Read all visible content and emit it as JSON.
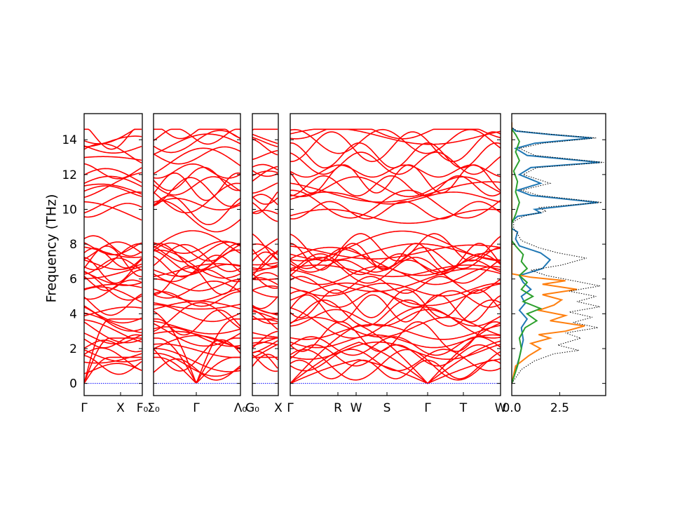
{
  "chart_data": {
    "type": "line",
    "ylabel": "Frequency (THz)",
    "ylim": [
      -0.7,
      15.5
    ],
    "yticks": [
      0,
      2,
      4,
      6,
      8,
      10,
      12,
      14
    ],
    "band_color": "#ff0000",
    "zero_line_color": "#0000ff",
    "panels": [
      {
        "segments": [
          {
            "from": "Γ",
            "to": "X"
          },
          {
            "from": "X",
            "to": "F₀"
          }
        ],
        "tick_labels": [
          "Γ",
          "X",
          "F₀"
        ]
      },
      {
        "segments": [
          {
            "from": "Σ₀",
            "to": "Γ"
          },
          {
            "from": "Γ",
            "to": "Λ₀"
          }
        ],
        "tick_labels": [
          "Σ₀",
          "Γ",
          "Λ₀"
        ]
      },
      {
        "segments": [
          {
            "from": "G₀",
            "to": "X"
          }
        ],
        "tick_labels": [
          "G₀",
          "X"
        ]
      },
      {
        "segments": [
          {
            "from": "Γ",
            "to": "R"
          },
          {
            "from": "R",
            "to": "W"
          },
          {
            "from": "W",
            "to": "S"
          },
          {
            "from": "S",
            "to": "Γ"
          },
          {
            "from": "Γ",
            "to": "T"
          },
          {
            "from": "T",
            "to": "W"
          }
        ],
        "tick_labels": [
          "Γ",
          "R",
          "W",
          "S",
          "Γ",
          "T",
          "W"
        ]
      }
    ],
    "dos": {
      "xlim": [
        0,
        4.9
      ],
      "xticks": [
        "0.0",
        "2.5"
      ],
      "series": [
        {
          "color": "#1f77b4",
          "points": [
            [
              0.0,
              0
            ],
            [
              0.4,
              1.5
            ],
            [
              0.6,
              2.5
            ],
            [
              0.5,
              3.2
            ],
            [
              0.8,
              3.7
            ],
            [
              0.4,
              4.2
            ],
            [
              0.7,
              4.6
            ],
            [
              0.5,
              5.0
            ],
            [
              1.0,
              5.4
            ],
            [
              0.6,
              5.8
            ],
            [
              0.4,
              6.2
            ],
            [
              1.6,
              6.6
            ],
            [
              2.0,
              7.1
            ],
            [
              1.5,
              7.5
            ],
            [
              0.4,
              7.9
            ],
            [
              0.2,
              8.3
            ],
            [
              0.3,
              8.7
            ],
            [
              0.0,
              8.9
            ],
            [
              0.0,
              9.3
            ],
            [
              0.3,
              9.6
            ],
            [
              1.5,
              9.8
            ],
            [
              1.2,
              10.0
            ],
            [
              4.5,
              10.4
            ],
            [
              1.0,
              10.8
            ],
            [
              0.3,
              11.1
            ],
            [
              1.5,
              11.5
            ],
            [
              0.4,
              12.0
            ],
            [
              1.0,
              12.4
            ],
            [
              4.6,
              12.7
            ],
            [
              0.8,
              13.1
            ],
            [
              0.2,
              13.5
            ],
            [
              1.2,
              13.8
            ],
            [
              4.2,
              14.1
            ],
            [
              2.0,
              14.3
            ],
            [
              0.2,
              14.5
            ],
            [
              0.0,
              14.7
            ]
          ]
        },
        {
          "color": "#ff7f0e",
          "points": [
            [
              0.0,
              0
            ],
            [
              0.2,
              1.0
            ],
            [
              0.9,
              1.6
            ],
            [
              1.5,
              2.0
            ],
            [
              1.0,
              2.3
            ],
            [
              2.0,
              2.6
            ],
            [
              1.4,
              2.8
            ],
            [
              2.8,
              3.0
            ],
            [
              3.8,
              3.3
            ],
            [
              2.0,
              3.6
            ],
            [
              2.8,
              3.9
            ],
            [
              1.4,
              4.2
            ],
            [
              2.2,
              4.5
            ],
            [
              2.6,
              4.8
            ],
            [
              1.6,
              5.1
            ],
            [
              3.4,
              5.4
            ],
            [
              1.6,
              5.7
            ],
            [
              2.8,
              5.9
            ],
            [
              1.0,
              6.1
            ],
            [
              0.0,
              6.3
            ],
            [
              0.0,
              15.0
            ]
          ]
        },
        {
          "color": "#2ca02c",
          "points": [
            [
              0.0,
              0
            ],
            [
              0.3,
              1.0
            ],
            [
              0.5,
              2.0
            ],
            [
              0.4,
              2.6
            ],
            [
              0.7,
              3.2
            ],
            [
              1.3,
              3.6
            ],
            [
              0.8,
              4.0
            ],
            [
              1.5,
              4.3
            ],
            [
              0.6,
              4.7
            ],
            [
              1.1,
              5.0
            ],
            [
              0.5,
              5.4
            ],
            [
              0.8,
              5.8
            ],
            [
              0.4,
              6.2
            ],
            [
              0.8,
              6.6
            ],
            [
              0.5,
              7.0
            ],
            [
              0.6,
              7.4
            ],
            [
              0.2,
              7.9
            ],
            [
              0.0,
              8.2
            ],
            [
              0.0,
              9.2
            ],
            [
              0.2,
              9.7
            ],
            [
              0.4,
              10.4
            ],
            [
              0.2,
              11.0
            ],
            [
              0.3,
              11.6
            ],
            [
              0.1,
              12.2
            ],
            [
              0.4,
              12.8
            ],
            [
              0.2,
              13.3
            ],
            [
              0.4,
              13.9
            ],
            [
              0.2,
              14.3
            ],
            [
              0.0,
              14.6
            ]
          ]
        },
        {
          "color": "#000000",
          "dotted": true,
          "points": [
            [
              0.0,
              0
            ],
            [
              0.5,
              0.8
            ],
            [
              1.2,
              1.3
            ],
            [
              2.2,
              1.7
            ],
            [
              3.5,
              1.9
            ],
            [
              2.4,
              2.2
            ],
            [
              3.6,
              2.6
            ],
            [
              2.8,
              2.9
            ],
            [
              4.5,
              3.2
            ],
            [
              3.2,
              3.5
            ],
            [
              4.2,
              3.8
            ],
            [
              3.0,
              4.1
            ],
            [
              4.6,
              4.4
            ],
            [
              3.4,
              4.7
            ],
            [
              4.4,
              5.0
            ],
            [
              3.0,
              5.3
            ],
            [
              4.6,
              5.6
            ],
            [
              3.2,
              5.9
            ],
            [
              1.8,
              6.2
            ],
            [
              1.0,
              6.5
            ],
            [
              2.6,
              6.8
            ],
            [
              3.9,
              7.2
            ],
            [
              2.4,
              7.5
            ],
            [
              1.4,
              7.8
            ],
            [
              0.5,
              8.2
            ],
            [
              0.3,
              8.6
            ],
            [
              0.1,
              8.9
            ],
            [
              0.1,
              9.3
            ],
            [
              0.6,
              9.6
            ],
            [
              1.8,
              9.9
            ],
            [
              1.4,
              10.1
            ],
            [
              4.7,
              10.4
            ],
            [
              1.4,
              10.8
            ],
            [
              0.5,
              11.1
            ],
            [
              2.0,
              11.5
            ],
            [
              0.6,
              12.0
            ],
            [
              1.3,
              12.4
            ],
            [
              4.8,
              12.7
            ],
            [
              1.2,
              13.1
            ],
            [
              0.4,
              13.5
            ],
            [
              1.6,
              13.8
            ],
            [
              4.4,
              14.1
            ],
            [
              2.2,
              14.3
            ],
            [
              0.3,
              14.5
            ],
            [
              0.0,
              14.7
            ]
          ]
        }
      ]
    }
  }
}
